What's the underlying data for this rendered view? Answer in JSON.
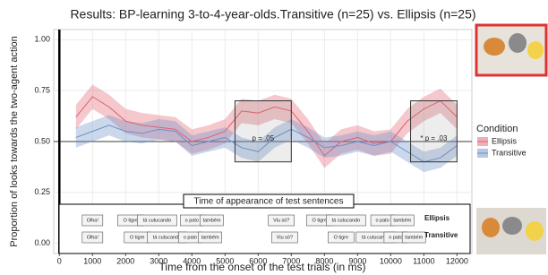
{
  "chart_data": {
    "type": "line",
    "title": "Results: BP-learning 3-to-4-year-olds.Transitive (n=25) vs. Ellipsis (n=25)",
    "x_label": "Time from the onset of the test trials (in ms)",
    "y_label": "Proportion of looks towards the two-agent action",
    "xlim": [
      -170,
      12450
    ],
    "ylim": [
      -0.05,
      1.05
    ],
    "xticks": [
      0,
      1000,
      2000,
      3000,
      4000,
      5000,
      6000,
      7000,
      8000,
      9000,
      10000,
      11000,
      12000
    ],
    "yticks": [
      {
        "value": 0,
        "label": "0.00"
      },
      {
        "value": 0.25,
        "label": "0.25"
      },
      {
        "value": 0.5,
        "label": "0.50"
      },
      {
        "value": 0.75,
        "label": "0.75"
      },
      {
        "value": 1,
        "label": "1.00"
      }
    ],
    "grid": true,
    "hline": 0.5,
    "vline": 0,
    "legend_title": "Condition",
    "x": [
      500,
      1000,
      1500,
      2000,
      2500,
      3000,
      3500,
      4000,
      4500,
      5000,
      5500,
      6000,
      6500,
      7000,
      7500,
      8000,
      8500,
      9000,
      9500,
      10000,
      10500,
      11000,
      11500,
      12000
    ],
    "series": [
      {
        "name": "Ellipsis",
        "color": "#e0606e",
        "values": [
          0.62,
          0.72,
          0.67,
          0.6,
          0.58,
          0.57,
          0.56,
          0.5,
          0.52,
          0.55,
          0.65,
          0.64,
          0.67,
          0.65,
          0.55,
          0.43,
          0.5,
          0.52,
          0.49,
          0.5,
          0.6,
          0.66,
          0.7,
          0.62
        ],
        "upper": [
          0.68,
          0.78,
          0.73,
          0.66,
          0.64,
          0.63,
          0.62,
          0.56,
          0.58,
          0.61,
          0.71,
          0.7,
          0.73,
          0.71,
          0.61,
          0.49,
          0.56,
          0.58,
          0.55,
          0.56,
          0.66,
          0.72,
          0.76,
          0.68
        ],
        "lower": [
          0.56,
          0.66,
          0.61,
          0.54,
          0.52,
          0.51,
          0.5,
          0.44,
          0.46,
          0.49,
          0.59,
          0.58,
          0.61,
          0.59,
          0.49,
          0.37,
          0.44,
          0.46,
          0.43,
          0.44,
          0.54,
          0.6,
          0.64,
          0.56
        ]
      },
      {
        "name": "Transitive",
        "color": "#6a8fc8",
        "values": [
          0.52,
          0.55,
          0.58,
          0.55,
          0.54,
          0.56,
          0.55,
          0.48,
          0.5,
          0.52,
          0.47,
          0.45,
          0.52,
          0.56,
          0.52,
          0.47,
          0.48,
          0.5,
          0.48,
          0.5,
          0.45,
          0.4,
          0.42,
          0.48
        ],
        "upper": [
          0.57,
          0.6,
          0.63,
          0.6,
          0.59,
          0.61,
          0.6,
          0.53,
          0.55,
          0.57,
          0.52,
          0.5,
          0.57,
          0.61,
          0.57,
          0.52,
          0.53,
          0.55,
          0.53,
          0.55,
          0.5,
          0.45,
          0.47,
          0.53
        ],
        "lower": [
          0.47,
          0.5,
          0.53,
          0.5,
          0.49,
          0.51,
          0.5,
          0.43,
          0.45,
          0.47,
          0.42,
          0.4,
          0.47,
          0.51,
          0.47,
          0.42,
          0.43,
          0.45,
          0.43,
          0.45,
          0.4,
          0.35,
          0.37,
          0.43
        ]
      }
    ],
    "boxes": [
      {
        "x": [
          5300,
          7000
        ],
        "y": [
          0.4,
          0.7
        ],
        "label": "p = .05"
      },
      {
        "x": [
          10600,
          12000
        ],
        "y": [
          0.4,
          0.7
        ],
        "label": "* p = .03"
      }
    ],
    "sentences": {
      "title": "Time of appearance of test sentences",
      "rows": [
        {
          "label": "Ellipsis",
          "words": [
            {
              "text": "Olha!",
              "x": 1000
            },
            {
              "text": "O tigre",
              "x": 2150
            },
            {
              "text": "tá cutucando",
              "x": 2950
            },
            {
              "text": "o pato",
              "x": 4000
            },
            {
              "text": "também",
              "x": 4600
            },
            {
              "text": "Viu só?",
              "x": 6700
            },
            {
              "text": "O tigre",
              "x": 7850
            },
            {
              "text": "tá cutucando",
              "x": 8650
            },
            {
              "text": "o pato",
              "x": 9750
            },
            {
              "text": "também",
              "x": 10350
            }
          ]
        },
        {
          "label": "Transitive",
          "words": [
            {
              "text": "Olha!",
              "x": 1000
            },
            {
              "text": "O tigre",
              "x": 2350
            },
            {
              "text": "tá cutucando",
              "x": 3250
            },
            {
              "text": "o pato",
              "x": 3950
            },
            {
              "text": "também",
              "x": 4550
            },
            {
              "text": "Viu só?",
              "x": 6800
            },
            {
              "text": "O tigre",
              "x": 8500
            },
            {
              "text": "tá cutucando",
              "x": 9550
            },
            {
              "text": "o pato",
              "x": 10150
            },
            {
              "text": "também",
              "x": 10700
            }
          ]
        }
      ]
    }
  }
}
